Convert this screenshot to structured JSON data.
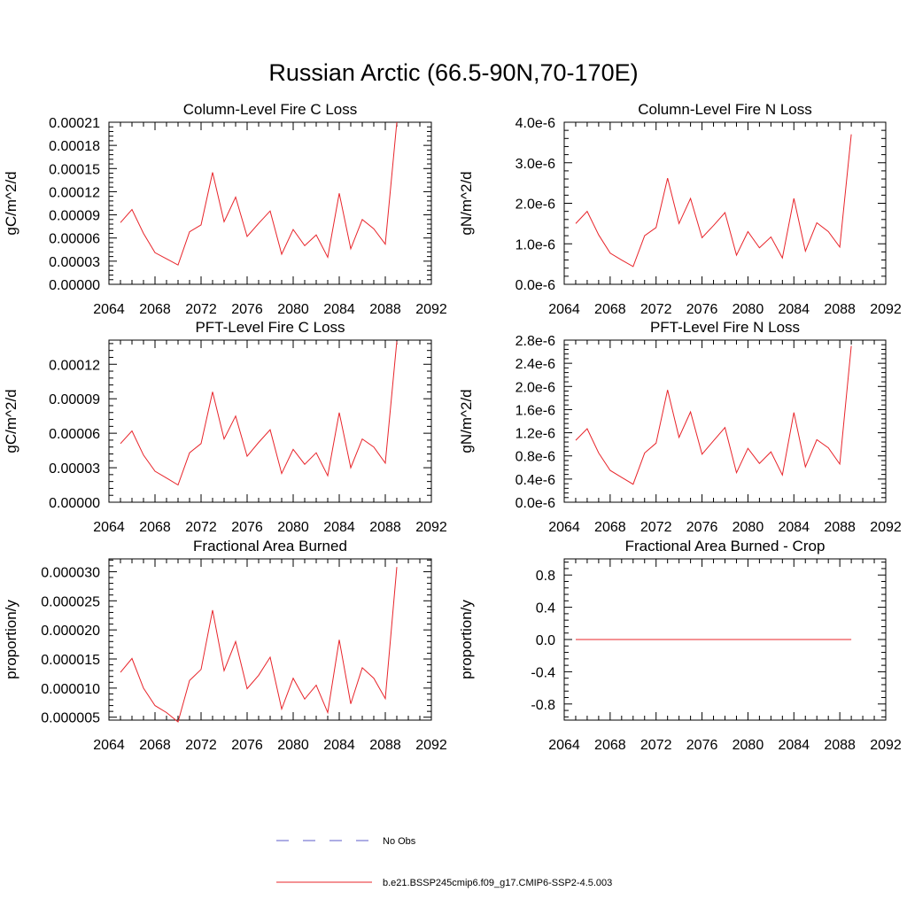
{
  "figure": {
    "title": "Russian Arctic (66.5-90N,70-170E)"
  },
  "legend": {
    "entries": [
      {
        "label": "No Obs",
        "color": "#5b5bc8",
        "style": "dashed"
      },
      {
        "label": "b.e21.BSSP245cmip6.f09_g17.CMIP6-SSP2-4.5.003",
        "color": "#e8242a",
        "style": "solid"
      }
    ]
  },
  "chart_data": [
    {
      "type": "line",
      "title": "Column-Level Fire C Loss",
      "ylabel": "gC/m^2/d",
      "xlim": [
        2064,
        2092
      ],
      "ylim": [
        0,
        0.00021
      ],
      "xticks": [
        2064,
        2068,
        2072,
        2076,
        2080,
        2084,
        2088,
        2092
      ],
      "xtick_labels": [
        "2064",
        "2068",
        "2072",
        "2076",
        "2080",
        "2084",
        "2088",
        "2092"
      ],
      "yticks": [
        0,
        3e-05,
        6e-05,
        9e-05,
        0.00012,
        0.00015,
        0.00018,
        0.00021
      ],
      "ytick_labels": [
        "0.00000",
        "0.00003",
        "0.00006",
        "0.00009",
        "0.00012",
        "0.00015",
        "0.00018",
        "0.00021"
      ],
      "series": [
        {
          "color": "#e8242a",
          "x": [
            2065,
            2066,
            2067,
            2068,
            2069,
            2070,
            2071,
            2072,
            2073,
            2074,
            2075,
            2076,
            2077,
            2078,
            2079,
            2080,
            2081,
            2082,
            2083,
            2084,
            2085,
            2086,
            2087,
            2088,
            2089
          ],
          "y": [
            8e-05,
            9.7e-05,
            6.6e-05,
            4.1e-05,
            3.3e-05,
            2.5e-05,
            6.8e-05,
            7.7e-05,
            0.000145,
            8.1e-05,
            0.000113,
            6.2e-05,
            7.9e-05,
            9.5e-05,
            3.9e-05,
            7.1e-05,
            5e-05,
            6.4e-05,
            3.5e-05,
            0.000118,
            4.6e-05,
            8.4e-05,
            7.2e-05,
            5.2e-05,
            0.00021
          ]
        }
      ]
    },
    {
      "type": "line",
      "title": "Column-Level Fire N Loss",
      "ylabel": "gN/m^2/d",
      "xlim": [
        2064,
        2092
      ],
      "ylim": [
        0,
        4e-06
      ],
      "xticks": [
        2064,
        2068,
        2072,
        2076,
        2080,
        2084,
        2088,
        2092
      ],
      "xtick_labels": [
        "2064",
        "2068",
        "2072",
        "2076",
        "2080",
        "2084",
        "2088",
        "2092"
      ],
      "yticks": [
        0,
        1e-06,
        2e-06,
        3e-06,
        4e-06
      ],
      "ytick_labels": [
        "0.0e-6",
        "1.0e-6",
        "2.0e-6",
        "3.0e-6",
        "4.0e-6"
      ],
      "series": [
        {
          "color": "#e8242a",
          "x": [
            2065,
            2066,
            2067,
            2068,
            2069,
            2070,
            2071,
            2072,
            2073,
            2074,
            2075,
            2076,
            2077,
            2078,
            2079,
            2080,
            2081,
            2082,
            2083,
            2084,
            2085,
            2086,
            2087,
            2088,
            2089
          ],
          "y": [
            1.5e-06,
            1.8e-06,
            1.22e-06,
            7.7e-07,
            6e-07,
            4.4e-07,
            1.2e-06,
            1.4e-06,
            2.62e-06,
            1.5e-06,
            2.12e-06,
            1.15e-06,
            1.45e-06,
            1.77e-06,
            7.2e-07,
            1.3e-06,
            9e-07,
            1.17e-06,
            6.5e-07,
            2.12e-06,
            8.2e-07,
            1.52e-06,
            1.3e-06,
            9.2e-07,
            3.7e-06
          ]
        }
      ]
    },
    {
      "type": "line",
      "title": "PFT-Level Fire C Loss",
      "ylabel": "gC/m^2/d",
      "xlim": [
        2064,
        2092
      ],
      "ylim": [
        0,
        0.000141
      ],
      "xticks": [
        2064,
        2068,
        2072,
        2076,
        2080,
        2084,
        2088,
        2092
      ],
      "xtick_labels": [
        "2064",
        "2068",
        "2072",
        "2076",
        "2080",
        "2084",
        "2088",
        "2092"
      ],
      "yticks": [
        0,
        3e-05,
        6e-05,
        9e-05,
        0.00012
      ],
      "ytick_labels": [
        "0.00000",
        "0.00003",
        "0.00006",
        "0.00009",
        "0.00012"
      ],
      "series": [
        {
          "color": "#e8242a",
          "x": [
            2065,
            2066,
            2067,
            2068,
            2069,
            2070,
            2071,
            2072,
            2073,
            2074,
            2075,
            2076,
            2077,
            2078,
            2079,
            2080,
            2081,
            2082,
            2083,
            2084,
            2085,
            2086,
            2087,
            2088,
            2089
          ],
          "y": [
            5.1e-05,
            6.2e-05,
            4.1e-05,
            2.7e-05,
            2.1e-05,
            1.5e-05,
            4.3e-05,
            5.1e-05,
            9.6e-05,
            5.5e-05,
            7.5e-05,
            4e-05,
            5.2e-05,
            6.3e-05,
            2.5e-05,
            4.6e-05,
            3.3e-05,
            4.3e-05,
            2.3e-05,
            7.8e-05,
            3e-05,
            5.5e-05,
            4.8e-05,
            3.4e-05,
            0.00014
          ]
        }
      ]
    },
    {
      "type": "line",
      "title": "PFT-Level Fire N Loss",
      "ylabel": "gN/m^2/d",
      "xlim": [
        2064,
        2092
      ],
      "ylim": [
        0,
        2.8e-06
      ],
      "xticks": [
        2064,
        2068,
        2072,
        2076,
        2080,
        2084,
        2088,
        2092
      ],
      "xtick_labels": [
        "2064",
        "2068",
        "2072",
        "2076",
        "2080",
        "2084",
        "2088",
        "2092"
      ],
      "yticks": [
        0,
        4e-07,
        8e-07,
        1.2e-06,
        1.6e-06,
        2e-06,
        2.4e-06,
        2.8e-06
      ],
      "ytick_labels": [
        "0.0e-6",
        "0.4e-6",
        "0.8e-6",
        "1.2e-6",
        "1.6e-6",
        "2.0e-6",
        "2.4e-6",
        "2.8e-6"
      ],
      "series": [
        {
          "color": "#e8242a",
          "x": [
            2065,
            2066,
            2067,
            2068,
            2069,
            2070,
            2071,
            2072,
            2073,
            2074,
            2075,
            2076,
            2077,
            2078,
            2079,
            2080,
            2081,
            2082,
            2083,
            2084,
            2085,
            2086,
            2087,
            2088,
            2089
          ],
          "y": [
            1.07e-06,
            1.27e-06,
            8.5e-07,
            5.5e-07,
            4.3e-07,
            3.1e-07,
            8.5e-07,
            1.02e-06,
            1.94e-06,
            1.12e-06,
            1.56e-06,
            8.3e-07,
            1.06e-06,
            1.29e-06,
            5.1e-07,
            9.3e-07,
            6.7e-07,
            8.7e-07,
            4.7e-07,
            1.55e-06,
            6.1e-07,
            1.08e-06,
            9.4e-07,
            6.6e-07,
            2.7e-06
          ]
        }
      ]
    },
    {
      "type": "line",
      "title": "Fractional Area Burned",
      "ylabel": "proportion/y",
      "xlim": [
        2064,
        2092
      ],
      "ylim": [
        4.5e-06,
        3.22e-05
      ],
      "xticks": [
        2064,
        2068,
        2072,
        2076,
        2080,
        2084,
        2088,
        2092
      ],
      "xtick_labels": [
        "2064",
        "2068",
        "2072",
        "2076",
        "2080",
        "2084",
        "2088",
        "2092"
      ],
      "yticks": [
        5e-06,
        1e-05,
        1.5e-05,
        2e-05,
        2.5e-05,
        3e-05
      ],
      "ytick_labels": [
        "0.000005",
        "0.000010",
        "0.000015",
        "0.000020",
        "0.000025",
        "0.000030"
      ],
      "series": [
        {
          "color": "#e8242a",
          "x": [
            2065,
            2066,
            2067,
            2068,
            2069,
            2070,
            2071,
            2072,
            2073,
            2074,
            2075,
            2076,
            2077,
            2078,
            2079,
            2080,
            2081,
            2082,
            2083,
            2084,
            2085,
            2086,
            2087,
            2088,
            2089
          ],
          "y": [
            1.27e-05,
            1.51e-05,
            1e-05,
            7e-06,
            5.8e-06,
            4.2e-06,
            1.13e-05,
            1.32e-05,
            2.34e-05,
            1.3e-05,
            1.8e-05,
            9.9e-06,
            1.22e-05,
            1.53e-05,
            6.4e-06,
            1.17e-05,
            8.1e-06,
            1.05e-05,
            5.8e-06,
            1.83e-05,
            7.3e-06,
            1.35e-05,
            1.17e-05,
            8.2e-06,
            3.08e-05
          ]
        }
      ]
    },
    {
      "type": "line",
      "title": "Fractional Area Burned - Crop",
      "ylabel": "proportion/y",
      "xlim": [
        2064,
        2092
      ],
      "ylim": [
        -1.0,
        1.0
      ],
      "xticks": [
        2064,
        2068,
        2072,
        2076,
        2080,
        2084,
        2088,
        2092
      ],
      "xtick_labels": [
        "2064",
        "2068",
        "2072",
        "2076",
        "2080",
        "2084",
        "2088",
        "2092"
      ],
      "yticks": [
        -0.8,
        -0.4,
        0.0,
        0.4,
        0.8
      ],
      "ytick_labels": [
        "-0.8",
        "-0.4",
        "0.0",
        "0.4",
        "0.8"
      ],
      "series": [
        {
          "color": "#e8242a",
          "x": [
            2065,
            2089
          ],
          "y": [
            0.0,
            0.0
          ]
        }
      ]
    }
  ]
}
